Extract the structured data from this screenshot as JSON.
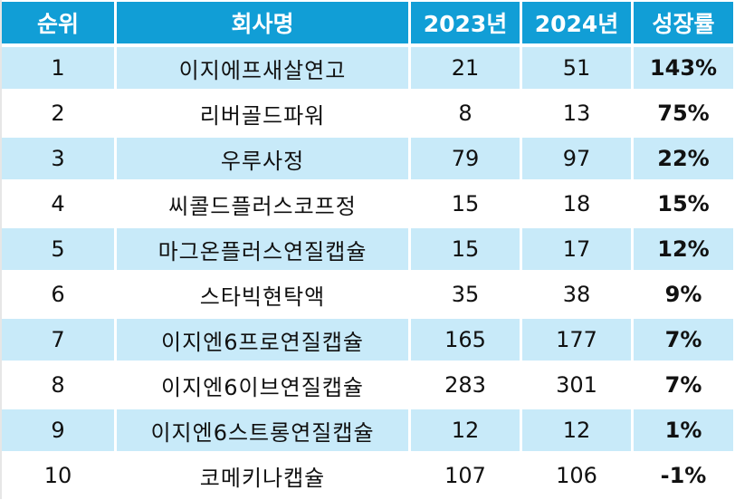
{
  "table": {
    "headers": {
      "rank": "순위",
      "company": "회사명",
      "y2023": "2023년",
      "y2024": "2024년",
      "growth": "성장률"
    },
    "rows": [
      {
        "rank": "1",
        "company": "이지에프새살연고",
        "y2023": "21",
        "y2024": "51",
        "growth": "143%"
      },
      {
        "rank": "2",
        "company": "리버골드파워",
        "y2023": "8",
        "y2024": "13",
        "growth": "75%"
      },
      {
        "rank": "3",
        "company": "우루사정",
        "y2023": "79",
        "y2024": "97",
        "growth": "22%"
      },
      {
        "rank": "4",
        "company": "씨콜드플러스코프정",
        "y2023": "15",
        "y2024": "18",
        "growth": "15%"
      },
      {
        "rank": "5",
        "company": "마그온플러스연질캡슐",
        "y2023": "15",
        "y2024": "17",
        "growth": "12%"
      },
      {
        "rank": "6",
        "company": "스타빅현탁액",
        "y2023": "35",
        "y2024": "38",
        "growth": "9%"
      },
      {
        "rank": "7",
        "company": "이지엔6프로연질캡슐",
        "y2023": "165",
        "y2024": "177",
        "growth": "7%"
      },
      {
        "rank": "8",
        "company": "이지엔6이브연질캡슐",
        "y2023": "283",
        "y2024": "301",
        "growth": "7%"
      },
      {
        "rank": "9",
        "company": "이지엔6스트롱연질캡슐",
        "y2023": "12",
        "y2024": "12",
        "growth": "1%"
      },
      {
        "rank": "10",
        "company": "코메키나캡슐",
        "y2023": "107",
        "y2024": "106",
        "growth": "-1%"
      }
    ]
  },
  "colors": {
    "header_bg": "#119ed6",
    "header_text": "#ffffff",
    "shaded_row_bg": "#c8eaf9",
    "plain_row_bg": "#ffffff"
  }
}
